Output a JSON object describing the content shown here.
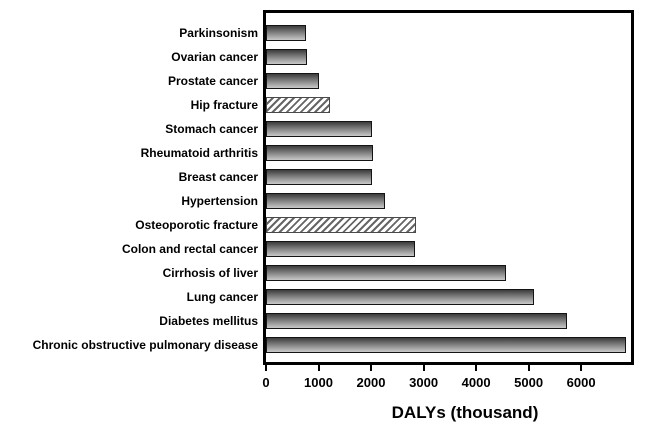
{
  "figure": {
    "background": "#ffffff",
    "frame_color": "#000000",
    "text_color": "#000000"
  },
  "colors": {
    "bar_gradient_top": "#3c3c3c",
    "bar_gradient_bottom": "#c9c9c9",
    "bar_border": "#141414",
    "hatch_stripe": "#666666",
    "hatch_background": "#ffffff"
  },
  "chart_data": {
    "type": "bar",
    "orientation": "horizontal",
    "xlabel": "DALYs (thousand)",
    "x_ticks": [
      0,
      1000,
      2000,
      3000,
      4000,
      5000,
      6000
    ],
    "xlim": [
      0,
      6950
    ],
    "grid": false,
    "legend": false,
    "bar_style_note": "solid bars: vertical gray gradient; hatched bars: white with diagonal stripes",
    "items": [
      {
        "label": "Parkinsonism",
        "value": 760,
        "hatched": false
      },
      {
        "label": "Ovarian cancer",
        "value": 780,
        "hatched": false
      },
      {
        "label": "Prostate cancer",
        "value": 1010,
        "hatched": false
      },
      {
        "label": "Hip fracture",
        "value": 1220,
        "hatched": true
      },
      {
        "label": "Stomach cancer",
        "value": 2020,
        "hatched": false
      },
      {
        "label": "Rheumatoid arthritis",
        "value": 2030,
        "hatched": false
      },
      {
        "label": "Breast cancer",
        "value": 2020,
        "hatched": false
      },
      {
        "label": "Hypertension",
        "value": 2260,
        "hatched": false
      },
      {
        "label": "Osteoporotic fracture",
        "value": 2860,
        "hatched": true
      },
      {
        "label": "Colon and rectal cancer",
        "value": 2840,
        "hatched": false
      },
      {
        "label": "Cirrhosis of liver",
        "value": 4560,
        "hatched": false
      },
      {
        "label": "Lung cancer",
        "value": 5100,
        "hatched": false
      },
      {
        "label": "Diabetes mellitus",
        "value": 5730,
        "hatched": false
      },
      {
        "label": "Chronic obstructive pulmonary disease",
        "value": 6850,
        "hatched": false
      }
    ]
  }
}
